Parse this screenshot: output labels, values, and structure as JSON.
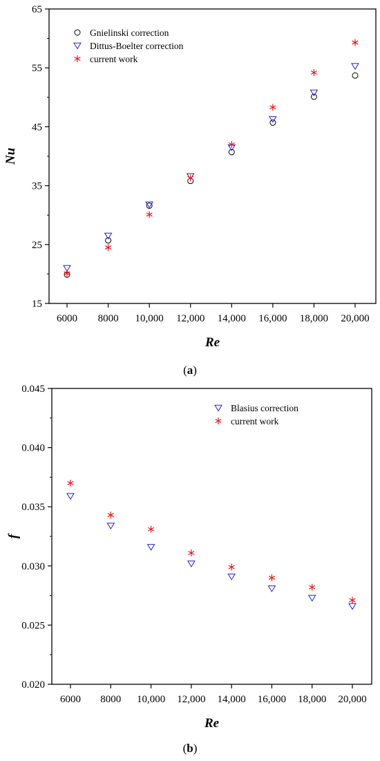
{
  "chart_data": [
    {
      "type": "scatter",
      "panel_label": "(a)",
      "panel_letter": "a",
      "xlabel": "Re",
      "ylabel": "Nu",
      "categories": [
        "6000",
        "8000",
        "10,000",
        "12,000",
        "14,000",
        "16,000",
        "18,000",
        "20,000"
      ],
      "ylim": [
        15,
        65
      ],
      "yticks": [
        "15",
        "25",
        "35",
        "45",
        "55",
        "65"
      ],
      "legend_position": "top-left",
      "series": [
        {
          "name": "Gnielinski correction",
          "marker": "circle",
          "color": "#000000",
          "values": [
            19.9,
            25.7,
            31.6,
            35.8,
            40.7,
            45.7,
            50.1,
            53.7
          ]
        },
        {
          "name": "Dittus-Boelter correction",
          "marker": "triangle-down",
          "color": "#1f1fd8",
          "values": [
            21.0,
            26.5,
            31.8,
            36.6,
            41.5,
            46.3,
            50.8,
            55.3
          ]
        },
        {
          "name": "current work",
          "marker": "asterisk",
          "color": "#e8171c",
          "values": [
            20.1,
            24.5,
            30.1,
            36.3,
            42.0,
            48.3,
            54.2,
            59.3
          ]
        }
      ]
    },
    {
      "type": "scatter",
      "panel_label": "(b)",
      "panel_letter": "b",
      "xlabel": "Re",
      "ylabel": "f",
      "categories": [
        "6000",
        "8000",
        "10,000",
        "12,000",
        "14,000",
        "16,000",
        "18,000",
        "20,000"
      ],
      "ylim": [
        0.02,
        0.045
      ],
      "yticks": [
        "0.020",
        "0.025",
        "0.030",
        "0.035",
        "0.040",
        "0.045"
      ],
      "legend_position": "top-right",
      "series": [
        {
          "name": "Blasius correction",
          "marker": "triangle-down",
          "color": "#1f1fd8",
          "values": [
            0.0359,
            0.0334,
            0.0316,
            0.0302,
            0.0291,
            0.0281,
            0.0273,
            0.0266
          ]
        },
        {
          "name": "current work",
          "marker": "asterisk",
          "color": "#e8171c",
          "values": [
            0.037,
            0.0343,
            0.0331,
            0.0311,
            0.0299,
            0.029,
            0.0282,
            0.0271
          ]
        }
      ]
    }
  ]
}
